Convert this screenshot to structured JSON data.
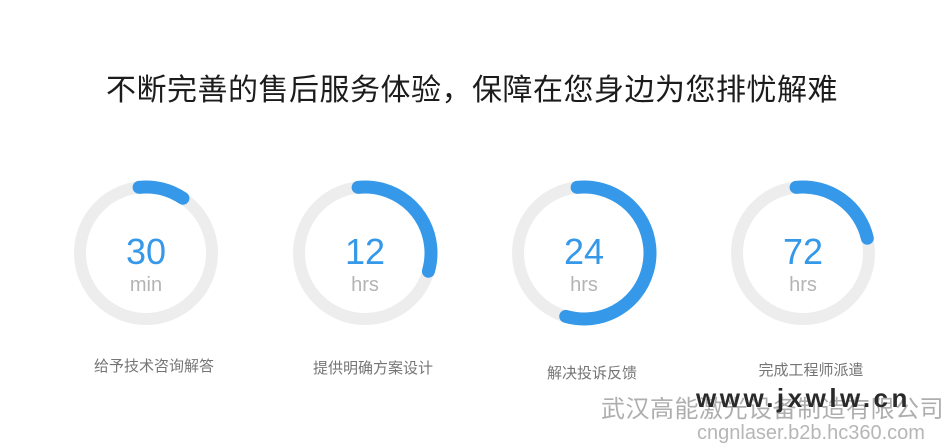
{
  "page": {
    "title": "不断完善的售后服务体验，保障在您身边为您排忧解难"
  },
  "colors": {
    "accent_blue": "#3598e8",
    "ring_track_gray": "#ededed",
    "title_text": "#1c1c1c",
    "caption_text": "#757575",
    "unit_text": "#b4b4b4",
    "watermark_company_gray": "#aeaeae",
    "watermark_url_dark": "#2a2a2a",
    "watermark_b2b_gray": "#b6b6b6"
  },
  "metrics": {
    "items": [
      {
        "value": "30",
        "unit": "min",
        "caption": "给予技术咨询解答",
        "arc_start_deg": -6,
        "arc_sweep_deg": 40
      },
      {
        "value": "12",
        "unit": "hrs",
        "caption": "提供明确方案设计",
        "arc_start_deg": -6,
        "arc_sweep_deg": 112
      },
      {
        "value": "24",
        "unit": "hrs",
        "caption": "解决投诉反馈",
        "arc_start_deg": -6,
        "arc_sweep_deg": 202
      },
      {
        "value": "72",
        "unit": "hrs",
        "caption": "完成工程师派遣",
        "arc_start_deg": -6,
        "arc_sweep_deg": 83
      }
    ]
  },
  "watermark": {
    "company": "武汉高能激光设备制造有限公司",
    "site_url": "www.jxwlw.cn",
    "b2b_url": "cngnlaser.b2b.hc360.com"
  }
}
